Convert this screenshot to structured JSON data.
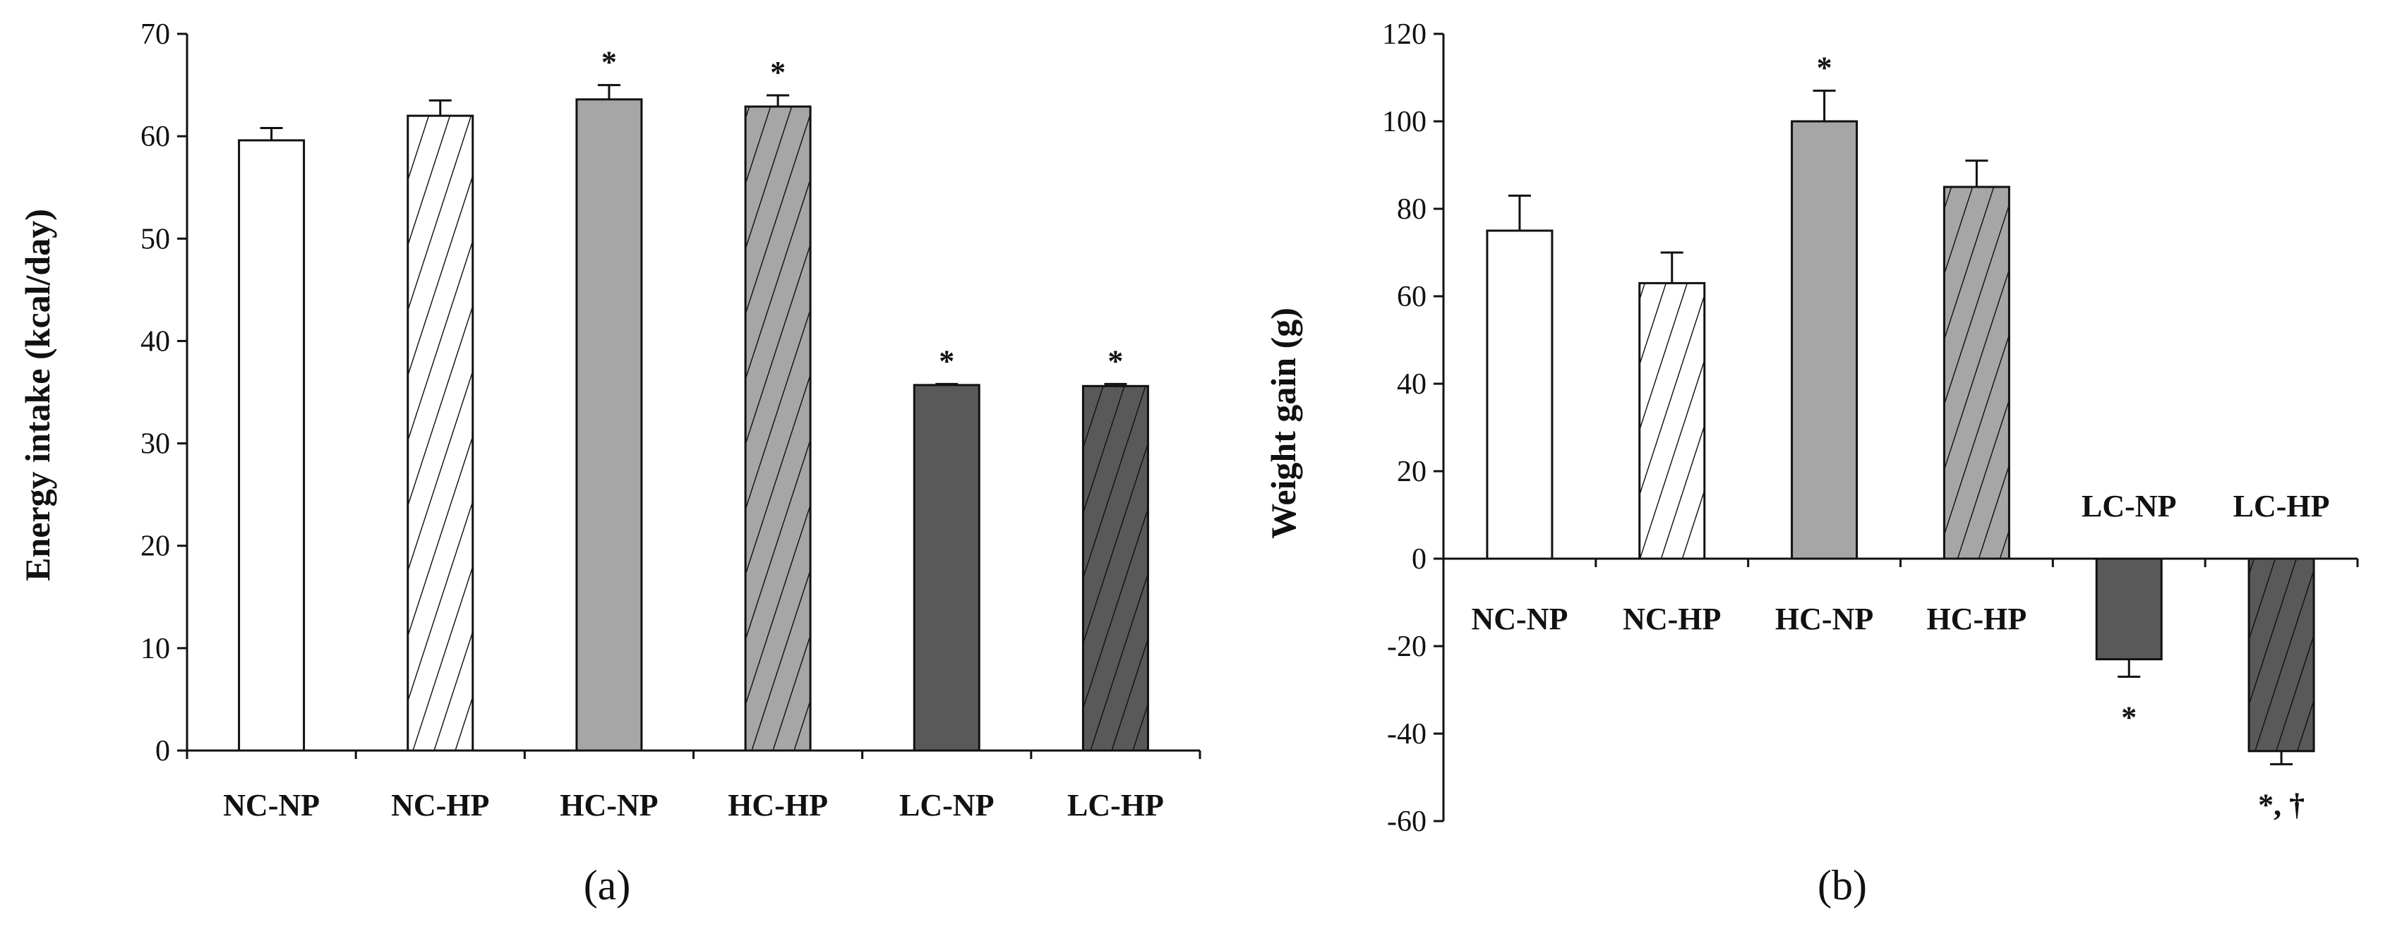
{
  "chart_data": [
    {
      "type": "bar",
      "panel_label": "(a)",
      "title": "",
      "xlabel": "",
      "ylabel": "Energy intake (kcal/day)",
      "ylim": [
        0,
        70
      ],
      "yticks": [
        0,
        10,
        20,
        30,
        40,
        50,
        60,
        70
      ],
      "categories": [
        "NC-NP",
        "NC-HP",
        "HC-NP",
        "HC-HP",
        "LC-NP",
        "LC-HP"
      ],
      "values": [
        59.6,
        62.0,
        63.6,
        62.9,
        35.7,
        35.6
      ],
      "errors": [
        1.2,
        1.5,
        1.4,
        1.1,
        0.1,
        0.2
      ],
      "fills": [
        "#ffffff",
        "#ffffff",
        "#a6a6a6",
        "#a6a6a6",
        "#595959",
        "#595959"
      ],
      "hatched": [
        false,
        true,
        false,
        true,
        false,
        true
      ],
      "annotations": [
        "",
        "",
        "*",
        "*",
        "*",
        "*"
      ]
    },
    {
      "type": "bar",
      "panel_label": "(b)",
      "title": "",
      "xlabel": "",
      "ylabel": "Weight gain (g)",
      "ylim": [
        -60,
        120
      ],
      "yticks": [
        -60,
        -40,
        -20,
        0,
        20,
        40,
        60,
        80,
        100,
        120
      ],
      "categories": [
        "NC-NP",
        "NC-HP",
        "HC-NP",
        "HC-HP",
        "LC-NP",
        "LC-HP"
      ],
      "values": [
        75,
        63,
        100,
        85,
        -23,
        -44
      ],
      "errors": [
        8,
        7,
        7,
        6,
        4,
        3
      ],
      "fills": [
        "#ffffff",
        "#ffffff",
        "#a6a6a6",
        "#a6a6a6",
        "#595959",
        "#595959"
      ],
      "hatched": [
        false,
        true,
        false,
        true,
        false,
        true
      ],
      "annotations": [
        "",
        "",
        "*",
        "",
        "*",
        "*, †"
      ]
    }
  ]
}
